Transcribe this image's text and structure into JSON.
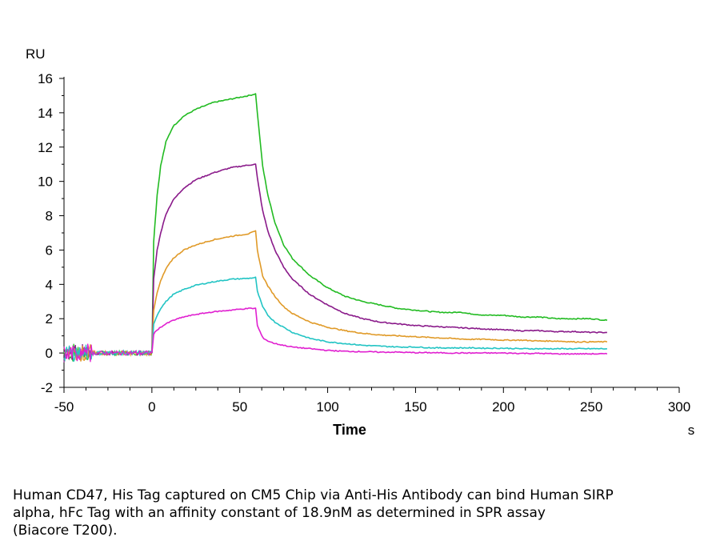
{
  "chart_data": {
    "type": "line",
    "ylabel": "RU",
    "xlabel": "Time",
    "x_unit": "s",
    "xlim": [
      -50,
      300
    ],
    "ylim": [
      -2,
      16
    ],
    "x_ticks": [
      -50,
      0,
      50,
      100,
      150,
      200,
      250,
      300
    ],
    "y_ticks": [
      -2,
      0,
      2,
      4,
      6,
      8,
      10,
      12,
      14,
      16
    ],
    "grid": false,
    "legend": "none",
    "association_end": 60,
    "series": [
      {
        "color": "#22bb22",
        "points": [
          [
            0,
            0
          ],
          [
            1,
            6.5
          ],
          [
            3,
            9.2
          ],
          [
            5,
            10.9
          ],
          [
            8,
            12.3
          ],
          [
            12,
            13.2
          ],
          [
            18,
            13.8
          ],
          [
            25,
            14.2
          ],
          [
            35,
            14.6
          ],
          [
            45,
            14.8
          ],
          [
            55,
            15.0
          ],
          [
            59,
            15.1
          ],
          [
            60,
            14.0
          ],
          [
            63,
            10.9
          ],
          [
            66,
            9.2
          ],
          [
            70,
            7.6
          ],
          [
            75,
            6.3
          ],
          [
            80,
            5.5
          ],
          [
            90,
            4.5
          ],
          [
            100,
            3.8
          ],
          [
            110,
            3.3
          ],
          [
            120,
            3.0
          ],
          [
            130,
            2.8
          ],
          [
            140,
            2.6
          ],
          [
            150,
            2.5
          ],
          [
            160,
            2.4
          ],
          [
            170,
            2.35
          ],
          [
            175,
            2.4
          ],
          [
            180,
            2.3
          ],
          [
            190,
            2.2
          ],
          [
            200,
            2.2
          ],
          [
            210,
            2.1
          ],
          [
            220,
            2.1
          ],
          [
            230,
            2.0
          ],
          [
            240,
            2.0
          ],
          [
            250,
            2.0
          ],
          [
            259,
            1.9
          ]
        ]
      },
      {
        "color": "#8a1a8a",
        "points": [
          [
            0,
            0
          ],
          [
            1,
            4.3
          ],
          [
            3,
            6.0
          ],
          [
            5,
            7.0
          ],
          [
            8,
            8.1
          ],
          [
            12,
            8.9
          ],
          [
            18,
            9.6
          ],
          [
            25,
            10.1
          ],
          [
            35,
            10.5
          ],
          [
            45,
            10.8
          ],
          [
            55,
            10.95
          ],
          [
            59,
            11.0
          ],
          [
            60,
            10.2
          ],
          [
            63,
            8.3
          ],
          [
            66,
            7.1
          ],
          [
            70,
            6.0
          ],
          [
            75,
            5.0
          ],
          [
            80,
            4.3
          ],
          [
            90,
            3.4
          ],
          [
            100,
            2.8
          ],
          [
            110,
            2.3
          ],
          [
            120,
            2.0
          ],
          [
            130,
            1.8
          ],
          [
            140,
            1.7
          ],
          [
            150,
            1.6
          ],
          [
            160,
            1.55
          ],
          [
            170,
            1.5
          ],
          [
            180,
            1.45
          ],
          [
            190,
            1.4
          ],
          [
            200,
            1.35
          ],
          [
            210,
            1.3
          ],
          [
            220,
            1.3
          ],
          [
            230,
            1.25
          ],
          [
            240,
            1.25
          ],
          [
            250,
            1.2
          ],
          [
            259,
            1.2
          ]
        ]
      },
      {
        "color": "#e09a28",
        "points": [
          [
            0,
            0
          ],
          [
            1,
            2.5
          ],
          [
            3,
            3.5
          ],
          [
            5,
            4.2
          ],
          [
            8,
            4.9
          ],
          [
            12,
            5.5
          ],
          [
            18,
            6.0
          ],
          [
            25,
            6.3
          ],
          [
            35,
            6.6
          ],
          [
            45,
            6.8
          ],
          [
            55,
            6.95
          ],
          [
            59,
            7.1
          ],
          [
            60,
            6.0
          ],
          [
            63,
            4.5
          ],
          [
            66,
            3.9
          ],
          [
            70,
            3.3
          ],
          [
            75,
            2.7
          ],
          [
            80,
            2.3
          ],
          [
            90,
            1.8
          ],
          [
            100,
            1.5
          ],
          [
            110,
            1.3
          ],
          [
            120,
            1.15
          ],
          [
            130,
            1.05
          ],
          [
            140,
            1.0
          ],
          [
            150,
            0.95
          ],
          [
            160,
            0.9
          ],
          [
            170,
            0.85
          ],
          [
            180,
            0.8
          ],
          [
            190,
            0.8
          ],
          [
            200,
            0.75
          ],
          [
            210,
            0.75
          ],
          [
            220,
            0.7
          ],
          [
            230,
            0.7
          ],
          [
            240,
            0.65
          ],
          [
            250,
            0.65
          ],
          [
            259,
            0.65
          ]
        ]
      },
      {
        "color": "#22c4c4",
        "points": [
          [
            0,
            0
          ],
          [
            1,
            1.7
          ],
          [
            3,
            2.2
          ],
          [
            5,
            2.6
          ],
          [
            8,
            3.0
          ],
          [
            12,
            3.4
          ],
          [
            18,
            3.7
          ],
          [
            25,
            3.95
          ],
          [
            35,
            4.15
          ],
          [
            45,
            4.3
          ],
          [
            55,
            4.35
          ],
          [
            59,
            4.4
          ],
          [
            60,
            3.6
          ],
          [
            63,
            2.7
          ],
          [
            66,
            2.2
          ],
          [
            70,
            1.8
          ],
          [
            75,
            1.5
          ],
          [
            80,
            1.2
          ],
          [
            90,
            0.85
          ],
          [
            100,
            0.65
          ],
          [
            110,
            0.55
          ],
          [
            120,
            0.45
          ],
          [
            130,
            0.4
          ],
          [
            140,
            0.35
          ],
          [
            150,
            0.35
          ],
          [
            160,
            0.3
          ],
          [
            170,
            0.3
          ],
          [
            180,
            0.3
          ],
          [
            190,
            0.28
          ],
          [
            200,
            0.28
          ],
          [
            210,
            0.25
          ],
          [
            220,
            0.25
          ],
          [
            230,
            0.25
          ],
          [
            240,
            0.25
          ],
          [
            250,
            0.25
          ],
          [
            259,
            0.25
          ]
        ]
      },
      {
        "color": "#e020d0",
        "points": [
          [
            0,
            0
          ],
          [
            1,
            1.1
          ],
          [
            3,
            1.35
          ],
          [
            5,
            1.5
          ],
          [
            8,
            1.7
          ],
          [
            12,
            1.9
          ],
          [
            18,
            2.1
          ],
          [
            25,
            2.25
          ],
          [
            35,
            2.4
          ],
          [
            45,
            2.5
          ],
          [
            55,
            2.6
          ],
          [
            59,
            2.6
          ],
          [
            60,
            1.6
          ],
          [
            63,
            0.9
          ],
          [
            66,
            0.7
          ],
          [
            70,
            0.55
          ],
          [
            75,
            0.45
          ],
          [
            80,
            0.35
          ],
          [
            90,
            0.25
          ],
          [
            100,
            0.15
          ],
          [
            110,
            0.1
          ],
          [
            120,
            0.08
          ],
          [
            130,
            0.05
          ],
          [
            140,
            0.05
          ],
          [
            150,
            0.02
          ],
          [
            160,
            0.02
          ],
          [
            170,
            0.0
          ],
          [
            180,
            0.0
          ],
          [
            190,
            0.0
          ],
          [
            200,
            0.0
          ],
          [
            210,
            -0.02
          ],
          [
            220,
            -0.02
          ],
          [
            230,
            -0.05
          ],
          [
            240,
            -0.05
          ],
          [
            250,
            -0.05
          ],
          [
            259,
            -0.05
          ]
        ]
      }
    ]
  },
  "caption_lines": [
    "Human CD47, His Tag captured on CM5 Chip via Anti-His Antibody can bind Human SIRP",
    "alpha, hFc Tag with an affinity constant of 18.9nM as determined in SPR assay",
    "(Biacore T200)."
  ]
}
